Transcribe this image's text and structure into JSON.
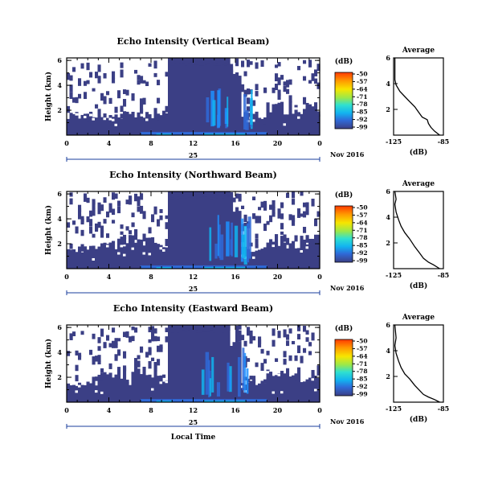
{
  "chart_data": [
    {
      "type": "heatmap",
      "title": "Echo Intensity (Vertical Beam)",
      "ylabel": "Height (km)",
      "xticks": [
        "0",
        "4",
        "8",
        "12",
        "16",
        "20",
        "0"
      ],
      "yticks": [
        "2",
        "4",
        "6"
      ],
      "xlim": [
        0,
        24
      ],
      "ylim": [
        0,
        6.2
      ],
      "date_day": "25",
      "date_month": "Nov 2016",
      "colorbar": {
        "title": "(dB)",
        "labels": [
          "-50",
          "-57",
          "-64",
          "-71",
          "-78",
          "-85",
          "-92",
          "-99"
        ]
      },
      "avg": {
        "title": "Average",
        "xlabel": "(dB)",
        "xticks": [
          "-125",
          "-85"
        ],
        "yticks": [
          "2",
          "4",
          "6"
        ],
        "xlim": [
          -125,
          -85
        ],
        "ylim": [
          0,
          6
        ],
        "profile": [
          [
            -88,
            0
          ],
          [
            -92,
            0.3
          ],
          [
            -95,
            0.6
          ],
          [
            -97,
            0.9
          ],
          [
            -98,
            1.2
          ],
          [
            -102,
            1.4
          ],
          [
            -105,
            1.8
          ],
          [
            -108,
            2.2
          ],
          [
            -112,
            2.6
          ],
          [
            -116,
            3.0
          ],
          [
            -120,
            3.4
          ],
          [
            -123,
            3.9
          ],
          [
            -124,
            4.3
          ],
          [
            -124,
            5.0
          ],
          [
            -124,
            6.0
          ]
        ]
      }
    },
    {
      "type": "heatmap",
      "title": "Echo Intensity (Northward Beam)",
      "ylabel": "Height (km)",
      "xticks": [
        "0",
        "4",
        "8",
        "12",
        "16",
        "20",
        "0"
      ],
      "yticks": [
        "2",
        "4",
        "6"
      ],
      "xlim": [
        0,
        24
      ],
      "ylim": [
        0,
        6.2
      ],
      "date_day": "25",
      "date_month": "Nov 2016",
      "colorbar": {
        "title": "(dB)",
        "labels": [
          "-50",
          "-57",
          "-64",
          "-71",
          "-78",
          "-85",
          "-92",
          "-99"
        ]
      },
      "avg": {
        "title": "Average",
        "xlabel": "(dB)",
        "xticks": [
          "-125",
          "-85"
        ],
        "yticks": [
          "2",
          "4",
          "6"
        ],
        "xlim": [
          -125,
          -85
        ],
        "ylim": [
          0,
          6
        ],
        "profile": [
          [
            -88,
            0
          ],
          [
            -93,
            0.3
          ],
          [
            -97,
            0.5
          ],
          [
            -101,
            0.8
          ],
          [
            -104,
            1.2
          ],
          [
            -108,
            1.7
          ],
          [
            -112,
            2.3
          ],
          [
            -116,
            2.8
          ],
          [
            -119,
            3.3
          ],
          [
            -121,
            3.8
          ],
          [
            -123,
            4.4
          ],
          [
            -124,
            5.0
          ],
          [
            -123,
            5.4
          ],
          [
            -124,
            6.0
          ]
        ]
      }
    },
    {
      "type": "heatmap",
      "title": "Echo Intensity (Eastward Beam)",
      "ylabel": "Height (km)",
      "xticks": [
        "0",
        "4",
        "8",
        "12",
        "16",
        "20",
        "0"
      ],
      "yticks": [
        "2",
        "4",
        "6"
      ],
      "xlim": [
        0,
        24
      ],
      "ylim": [
        0,
        6.2
      ],
      "date_day": "25",
      "date_month": "Nov 2016",
      "xlabel": "Local Time",
      "colorbar": {
        "title": "(dB)",
        "labels": [
          "-50",
          "-57",
          "-64",
          "-71",
          "-78",
          "-85",
          "-92",
          "-99"
        ]
      },
      "avg": {
        "title": "Average",
        "xlabel": "(dB)",
        "xticks": [
          "-125",
          "-85"
        ],
        "yticks": [
          "2",
          "4",
          "6"
        ],
        "xlim": [
          -125,
          -85
        ],
        "ylim": [
          0,
          6
        ],
        "profile": [
          [
            -88,
            0
          ],
          [
            -92,
            0.2
          ],
          [
            -97,
            0.4
          ],
          [
            -101,
            0.6
          ],
          [
            -104,
            0.9
          ],
          [
            -108,
            1.3
          ],
          [
            -112,
            1.8
          ],
          [
            -116,
            2.2
          ],
          [
            -119,
            2.7
          ],
          [
            -121,
            3.2
          ],
          [
            -123,
            3.8
          ],
          [
            -124,
            4.4
          ],
          [
            -123,
            5.0
          ],
          [
            -124,
            6.0
          ]
        ]
      }
    }
  ],
  "colors": {
    "background_echo": "#3b3f85",
    "colorbar": [
      "#ff4500",
      "#ff8c00",
      "#ffd700",
      "#adff2f",
      "#40e0d0",
      "#00bfff",
      "#1e90ff",
      "#2850d0",
      "#3b3f85"
    ]
  }
}
